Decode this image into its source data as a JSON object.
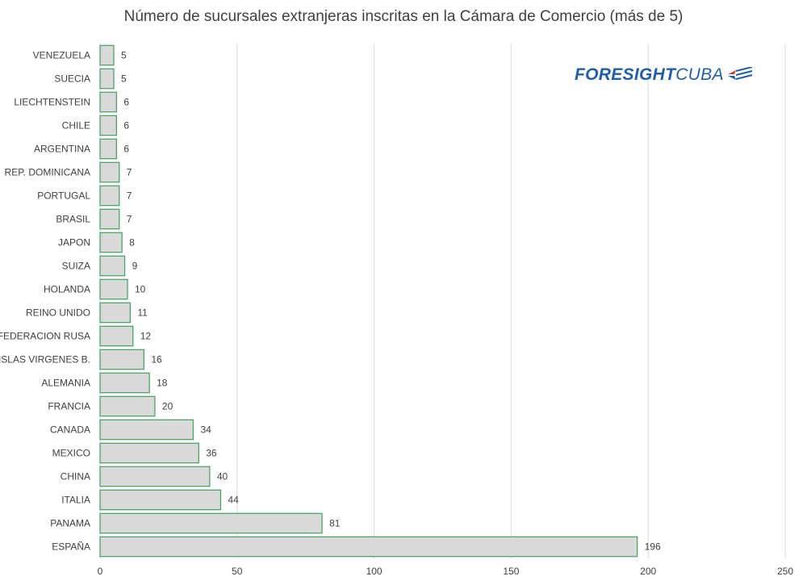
{
  "logo": {
    "text_bold": "FORESIGHT",
    "text_light": "CUBA"
  },
  "chart_data": {
    "type": "bar",
    "orientation": "horizontal",
    "title": "Número de sucursales extranjeras inscritas en la Cámara de Comercio (más de 5)",
    "xlabel": "",
    "ylabel": "",
    "xlim": [
      0,
      250
    ],
    "x_ticks": [
      0,
      50,
      100,
      150,
      200,
      250
    ],
    "grid": "vertical",
    "legend": "none",
    "bar_fill": "#d9d9d9",
    "bar_stroke": "#4aa564",
    "categories": [
      "VENEZUELA",
      "SUECIA",
      "LIECHTENSTEIN",
      "CHILE",
      "ARGENTINA",
      "REP. DOMINICANA",
      "PORTUGAL",
      "BRASIL",
      "JAPON",
      "SUIZA",
      "HOLANDA",
      "REINO UNIDO",
      "FEDERACION RUSA",
      "ISLAS VIRGENES B.",
      "ALEMANIA",
      "FRANCIA",
      "CANADA",
      "MEXICO",
      "CHINA",
      "ITALIA",
      "PANAMA",
      "ESPAÑA"
    ],
    "values": [
      5,
      5,
      6,
      6,
      6,
      7,
      7,
      7,
      8,
      9,
      10,
      11,
      12,
      16,
      18,
      20,
      34,
      36,
      40,
      44,
      81,
      196
    ]
  }
}
